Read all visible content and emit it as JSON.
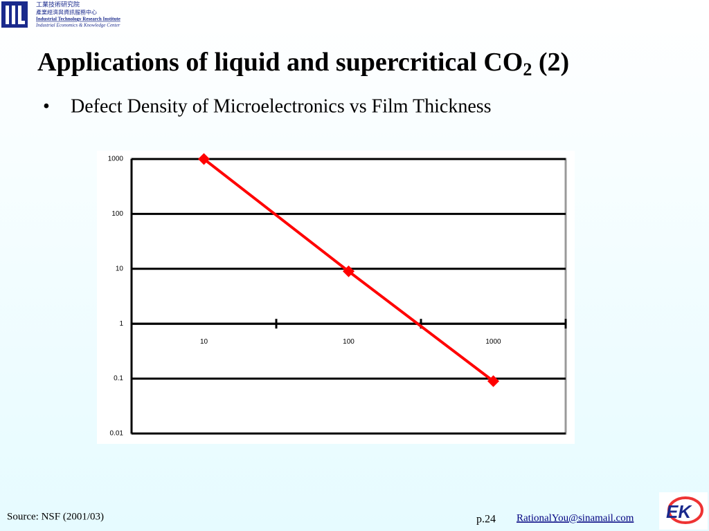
{
  "header": {
    "org_lines": [
      "工業技術研究院",
      "產業經濟與資訊服務中心",
      "Industrial Technology Research Institute",
      "Industrial Economics & Knowledge Center"
    ]
  },
  "title": [
    "Applications of liquid and supercritical CO",
    "2",
    " (2)"
  ],
  "bullet": "Defect Density of Microelectronics vs Film Thickness",
  "chart_data": {
    "type": "line",
    "categories": [
      "10",
      "100",
      "1000"
    ],
    "values": [
      1000,
      9,
      0.09
    ],
    "color": "#ff0000",
    "ylim": [
      0.01,
      1000
    ],
    "yticks": [
      1000,
      100,
      10,
      1,
      0.1,
      0.01
    ],
    "y_log": true,
    "grid": true,
    "x_axis_crosses": 1
  },
  "footer": {
    "source": "Source: NSF (2001/03)",
    "page": "p.24",
    "email": "RationalYou@sinamail.com"
  }
}
